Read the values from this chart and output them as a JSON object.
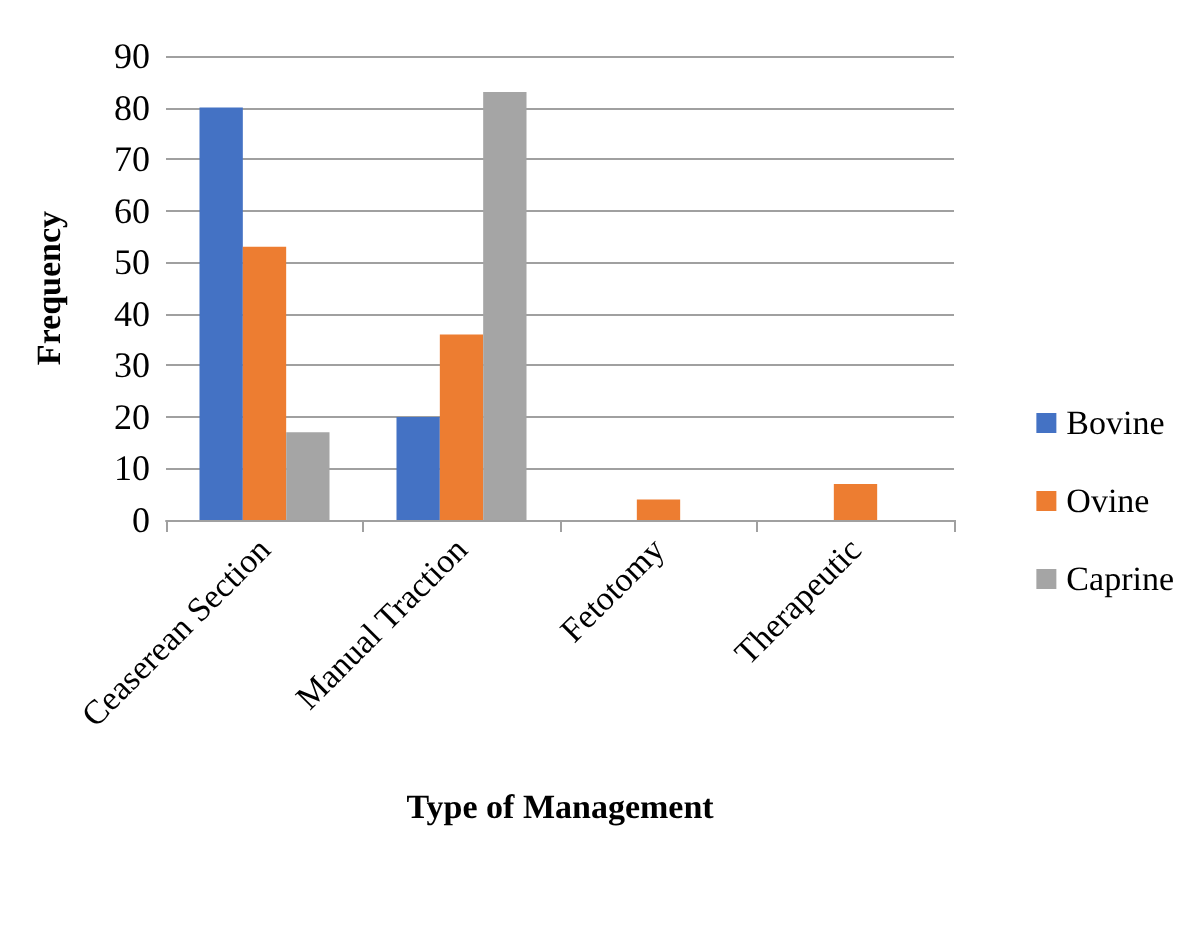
{
  "chart_data": {
    "type": "bar",
    "xlabel": "Type of Management",
    "ylabel": "Frequency",
    "categories": [
      "Ceaserean Section",
      "Manual Traction",
      "Fetotomy",
      "Therapeutic"
    ],
    "series": [
      {
        "name": "Bovine",
        "color": "#4472c4",
        "values": [
          80,
          20,
          0,
          0
        ]
      },
      {
        "name": "Ovine",
        "color": "#ed7d31",
        "values": [
          53,
          36,
          4,
          7
        ]
      },
      {
        "name": "Caprine",
        "color": "#a5a5a5",
        "values": [
          17,
          83,
          0,
          0
        ]
      }
    ],
    "ylim": [
      0,
      90
    ],
    "yticks": [
      0,
      10,
      20,
      30,
      40,
      50,
      60,
      70,
      80,
      90
    ],
    "grid": "y",
    "legend": "right"
  }
}
